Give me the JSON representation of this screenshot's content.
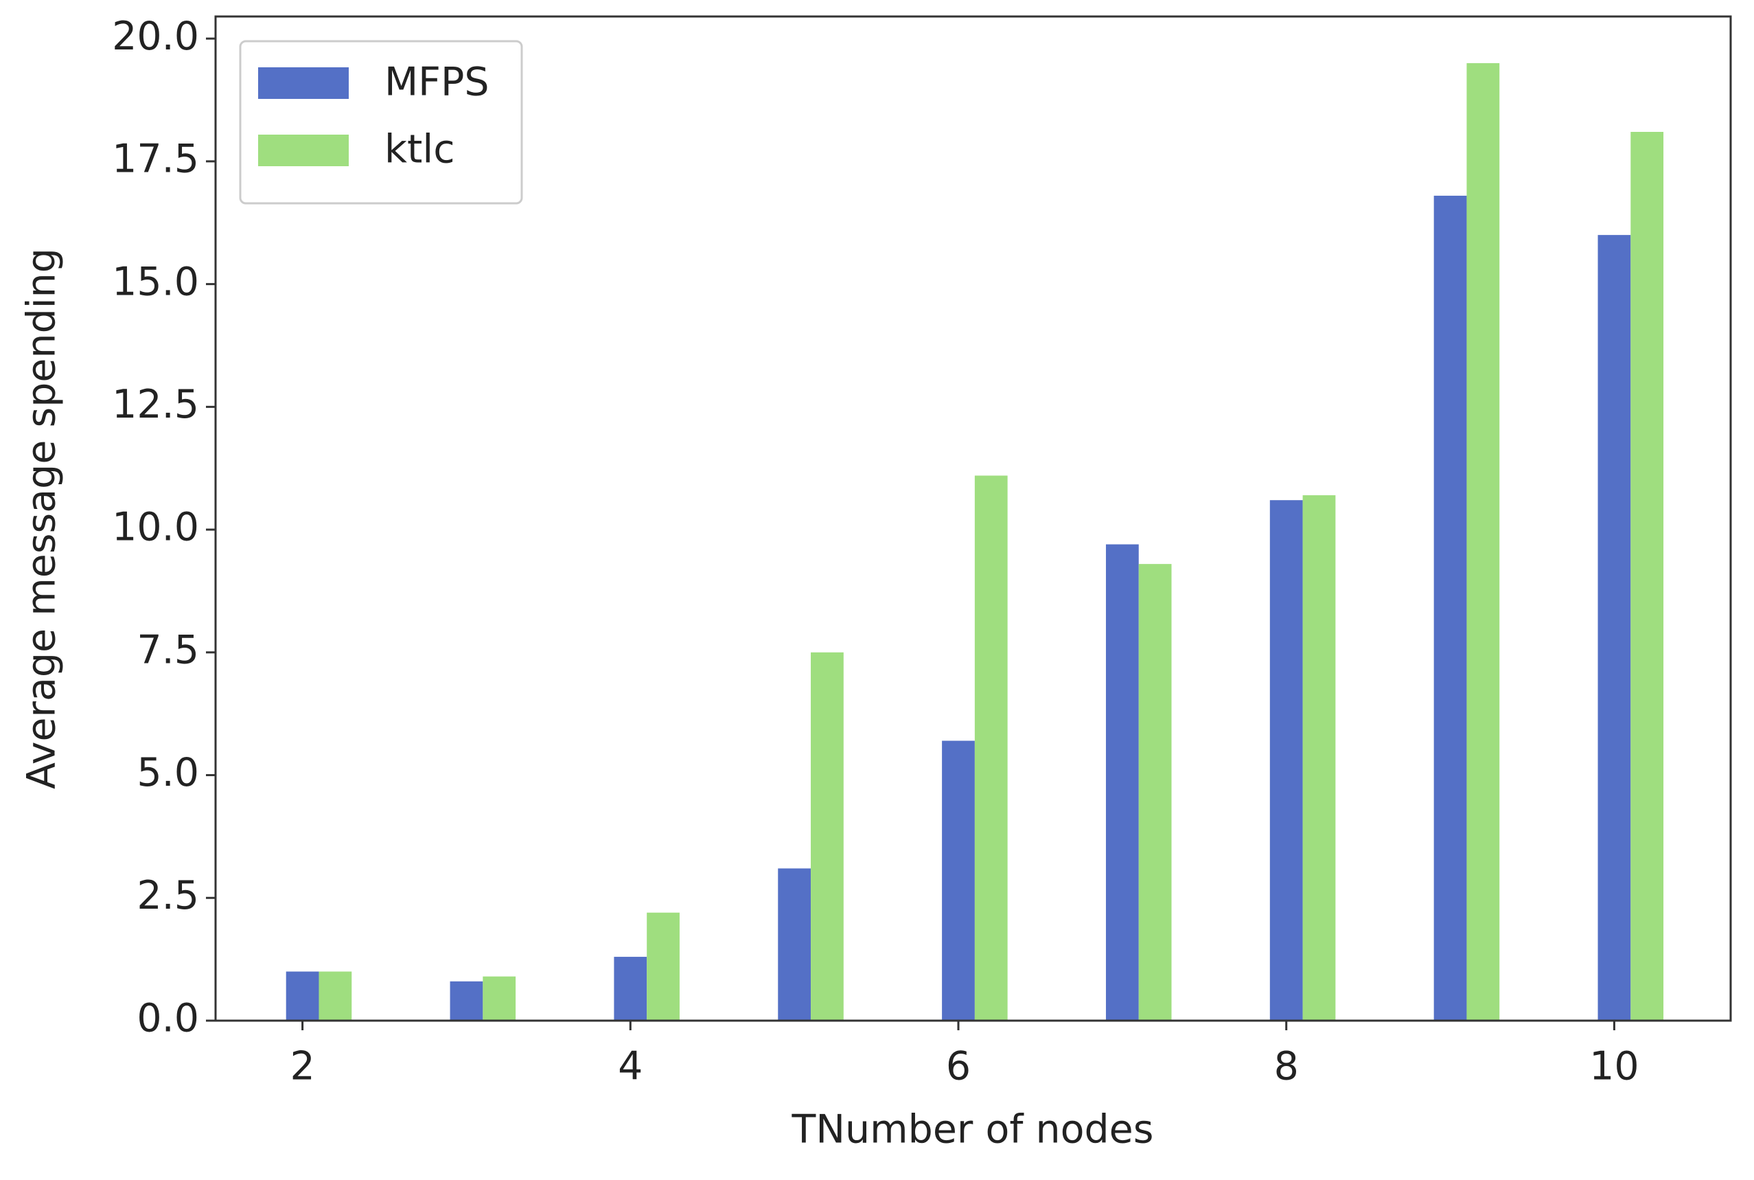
{
  "chart_data": {
    "type": "bar",
    "x_label": "TNumber of nodes",
    "y_label": "Average message spending",
    "x": [
      2,
      3,
      4,
      5,
      6,
      7,
      8,
      9,
      10
    ],
    "series": [
      {
        "name": "MFPS",
        "color": "#5470c6",
        "values": [
          1.0,
          0.8,
          1.3,
          3.1,
          5.7,
          9.7,
          10.6,
          16.8,
          16.0
        ]
      },
      {
        "name": "ktlc",
        "color": "#9fde7f",
        "values": [
          1.0,
          0.9,
          2.2,
          7.5,
          11.1,
          9.3,
          10.7,
          19.5,
          18.1
        ]
      }
    ],
    "xlim": [
      1.47,
      10.71
    ],
    "xticks": [
      2,
      4,
      6,
      8,
      10
    ],
    "ylim": [
      0,
      20.45
    ],
    "yticks": [
      {
        "value": 0,
        "label": "0.0"
      },
      2.5,
      {
        "value": 5,
        "label": "5.0"
      },
      7.5,
      {
        "value": 10,
        "label": "10.0"
      },
      12.5,
      {
        "value": 15,
        "label": "15.0"
      },
      17.5,
      {
        "value": 20,
        "label": "20.0"
      }
    ],
    "legend": "upper left",
    "grid": false
  }
}
